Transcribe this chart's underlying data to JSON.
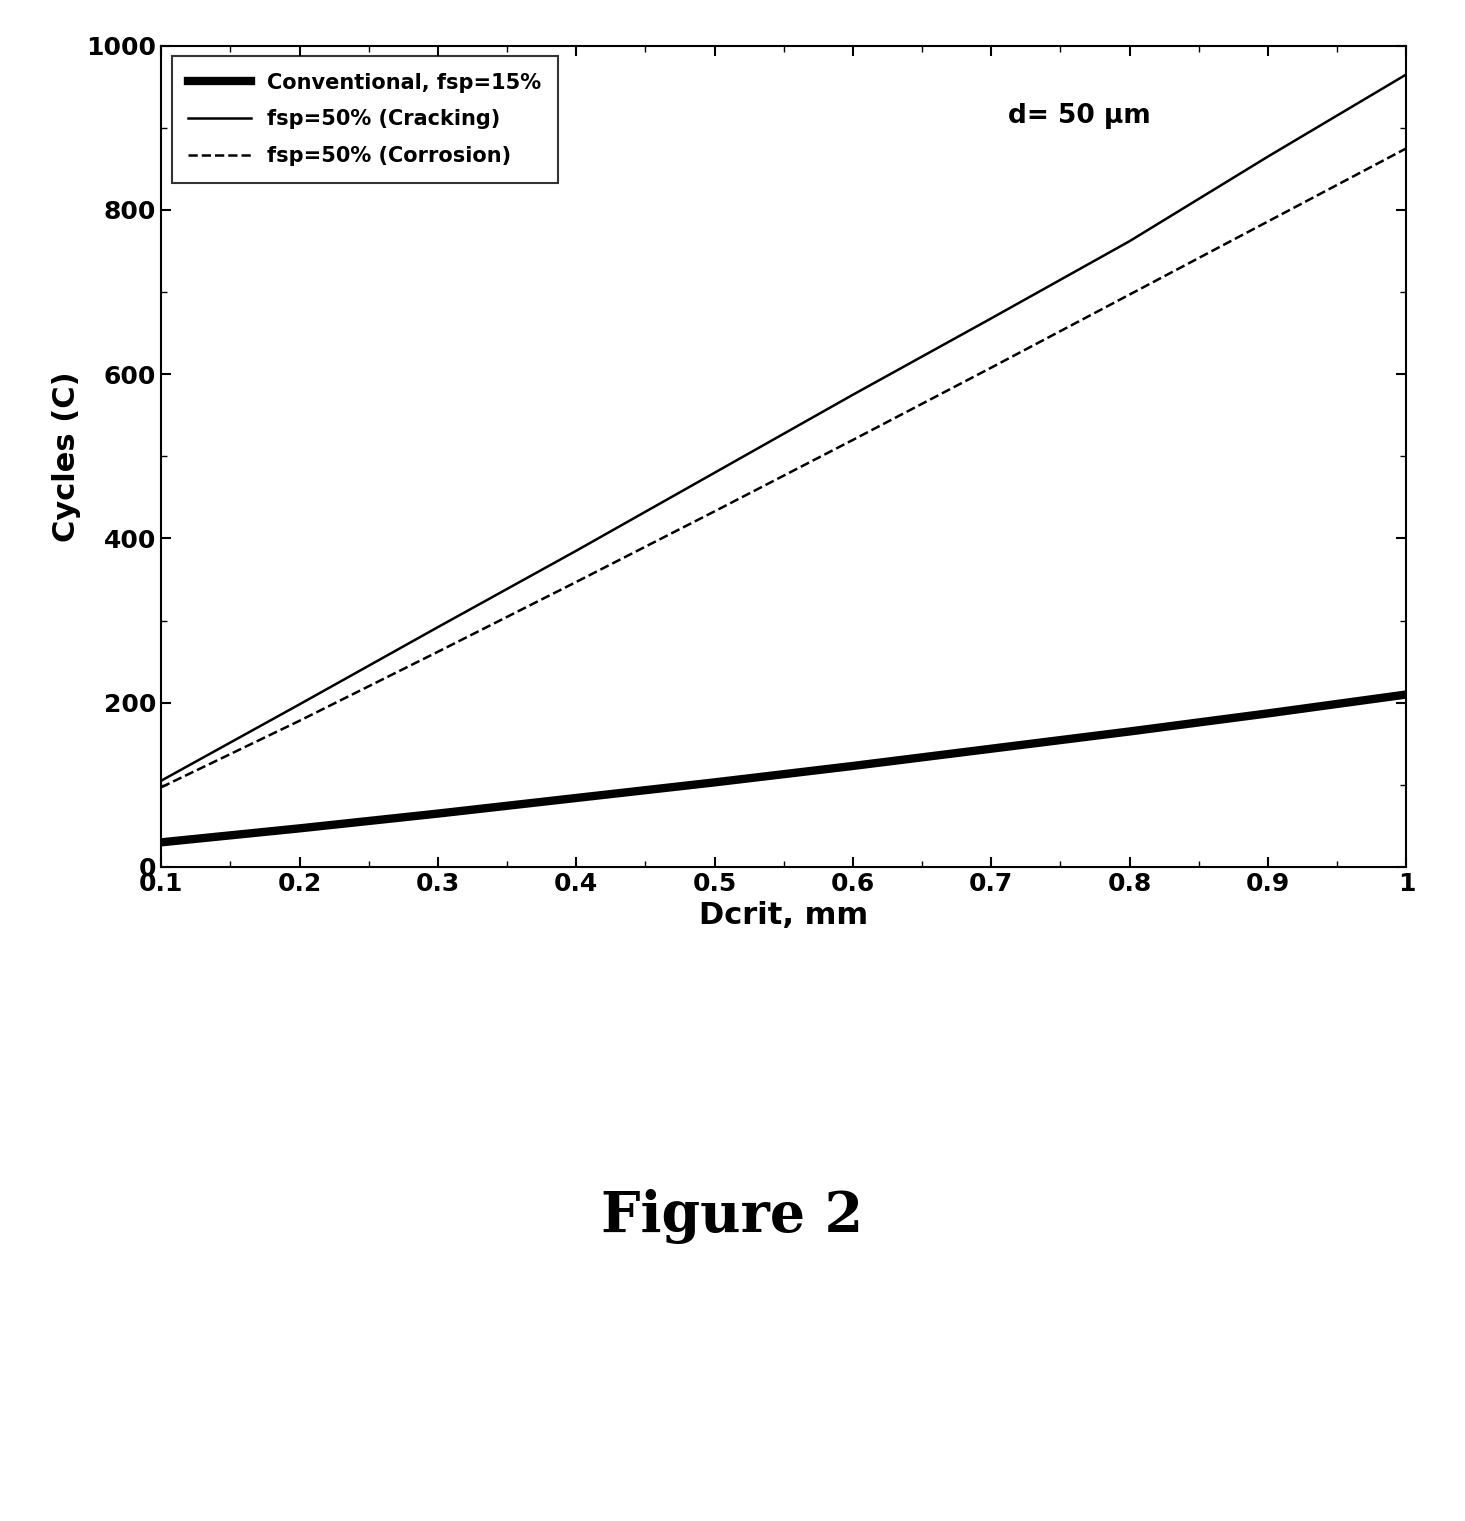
{
  "title": "",
  "xlabel": "Dcrit, mm",
  "ylabel": "Cycles (C)",
  "xlim": [
    0.1,
    1.0
  ],
  "ylim": [
    0,
    1000
  ],
  "xticks": [
    0.1,
    0.2,
    0.3,
    0.4,
    0.5,
    0.6,
    0.7,
    0.8,
    0.9,
    1.0
  ],
  "yticks": [
    0,
    200,
    400,
    600,
    800,
    1000
  ],
  "annotation": "d= 50 μm",
  "figure_caption": "Figure 2",
  "lines": [
    {
      "label": "Conventional, fsp=15%",
      "style": "solid",
      "color": "#000000",
      "linewidth": 6,
      "x": [
        0.1,
        0.2,
        0.3,
        0.4,
        0.5,
        0.6,
        0.7,
        0.8,
        0.9,
        1.0
      ],
      "y": [
        30,
        47,
        65,
        84,
        103,
        123,
        144,
        165,
        187,
        210
      ]
    },
    {
      "label": "fsp=50% (Cracking)",
      "style": "solid",
      "color": "#000000",
      "linewidth": 1.8,
      "x": [
        0.1,
        0.2,
        0.3,
        0.4,
        0.5,
        0.6,
        0.7,
        0.8,
        0.9,
        1.0
      ],
      "y": [
        105,
        198,
        292,
        385,
        480,
        575,
        668,
        762,
        865,
        965
      ]
    },
    {
      "label": "fsp=50% (Corrosion)",
      "style": "dashed",
      "color": "#000000",
      "linewidth": 1.8,
      "x": [
        0.1,
        0.2,
        0.3,
        0.4,
        0.5,
        0.6,
        0.7,
        0.8,
        0.9,
        1.0
      ],
      "y": [
        97,
        178,
        262,
        347,
        433,
        520,
        608,
        697,
        786,
        875
      ]
    }
  ],
  "legend_loc": "upper left",
  "background_color": "#ffffff",
  "plot_bg_color": "#ffffff"
}
